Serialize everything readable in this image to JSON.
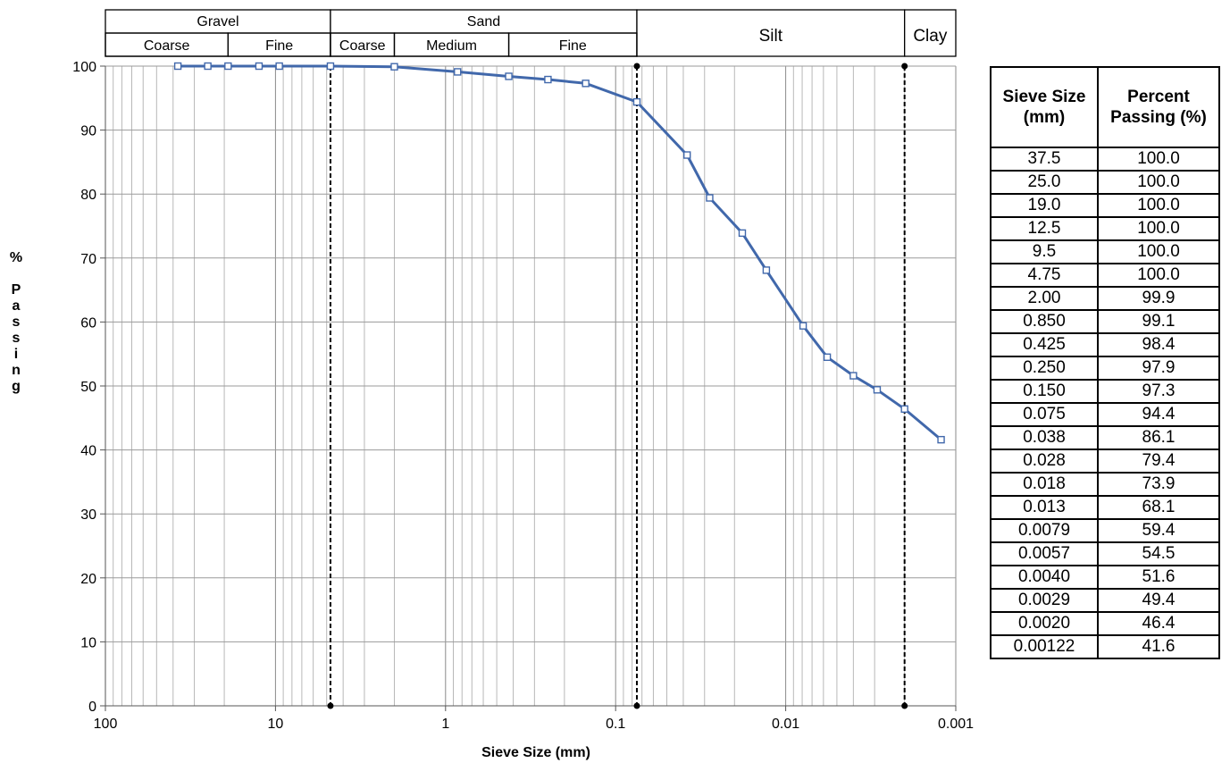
{
  "chart_data": {
    "type": "line",
    "x_scale": "log",
    "x_reversed": true,
    "xlim": [
      100,
      0.001
    ],
    "ylim": [
      0,
      100
    ],
    "yticks": [
      0,
      10,
      20,
      30,
      40,
      50,
      60,
      70,
      80,
      90,
      100
    ],
    "xticks": [
      {
        "value": 100,
        "label": "100"
      },
      {
        "value": 10,
        "label": "10"
      },
      {
        "value": 1,
        "label": "1"
      },
      {
        "value": 0.1,
        "label": "0.1"
      },
      {
        "value": 0.01,
        "label": "0.01"
      },
      {
        "value": 0.001,
        "label": "0.001"
      }
    ],
    "xlabel": "Sieve Size (mm)",
    "ylabel_letters": [
      "%",
      "",
      "P",
      "a",
      "s",
      "s",
      "i",
      "n",
      "g"
    ],
    "grid": true,
    "line_color": "#4168ab",
    "boundaries": [
      4.75,
      0.075,
      0.002
    ],
    "series": [
      {
        "x": [
          37.5,
          25.0,
          19.0,
          12.5,
          9.5,
          4.75,
          2.0,
          0.85,
          0.425,
          0.25,
          0.15,
          0.075,
          0.038,
          0.028,
          0.018,
          0.013,
          0.0079,
          0.0057,
          0.004,
          0.0029,
          0.002,
          0.00122
        ],
        "y": [
          100.0,
          100.0,
          100.0,
          100.0,
          100.0,
          100.0,
          99.9,
          99.1,
          98.4,
          97.9,
          97.3,
          94.4,
          86.1,
          79.4,
          73.9,
          68.1,
          59.4,
          54.5,
          51.6,
          49.4,
          46.4,
          41.6
        ]
      }
    ],
    "classification": {
      "top": [
        {
          "label": "Gravel",
          "from": 100,
          "to": 4.75
        },
        {
          "label": "Sand",
          "from": 4.75,
          "to": 0.075
        },
        {
          "label": "Silt",
          "from": 0.075,
          "to": 0.002
        },
        {
          "label": "Clay",
          "from": 0.002,
          "to": 0.001
        }
      ],
      "sub": [
        {
          "label": "Coarse",
          "from": 100,
          "to": 19.0
        },
        {
          "label": "Fine",
          "from": 19.0,
          "to": 4.75
        },
        {
          "label": "Coarse",
          "from": 4.75,
          "to": 2.0
        },
        {
          "label": "Medium",
          "from": 2.0,
          "to": 0.425
        },
        {
          "label": "Fine",
          "from": 0.425,
          "to": 0.075
        }
      ]
    }
  },
  "table": {
    "header_size": "Sieve Size (mm)",
    "header_passing": "Percent Passing (%)",
    "rows": [
      [
        "37.5",
        "100.0"
      ],
      [
        "25.0",
        "100.0"
      ],
      [
        "19.0",
        "100.0"
      ],
      [
        "12.5",
        "100.0"
      ],
      [
        "9.5",
        "100.0"
      ],
      [
        "4.75",
        "100.0"
      ],
      [
        "2.00",
        "99.9"
      ],
      [
        "0.850",
        "99.1"
      ],
      [
        "0.425",
        "98.4"
      ],
      [
        "0.250",
        "97.9"
      ],
      [
        "0.150",
        "97.3"
      ],
      [
        "0.075",
        "94.4"
      ],
      [
        "0.038",
        "86.1"
      ],
      [
        "0.028",
        "79.4"
      ],
      [
        "0.018",
        "73.9"
      ],
      [
        "0.013",
        "68.1"
      ],
      [
        "0.0079",
        "59.4"
      ],
      [
        "0.0057",
        "54.5"
      ],
      [
        "0.0040",
        "51.6"
      ],
      [
        "0.0029",
        "49.4"
      ],
      [
        "0.0020",
        "46.4"
      ],
      [
        "0.00122",
        "41.6"
      ]
    ]
  }
}
